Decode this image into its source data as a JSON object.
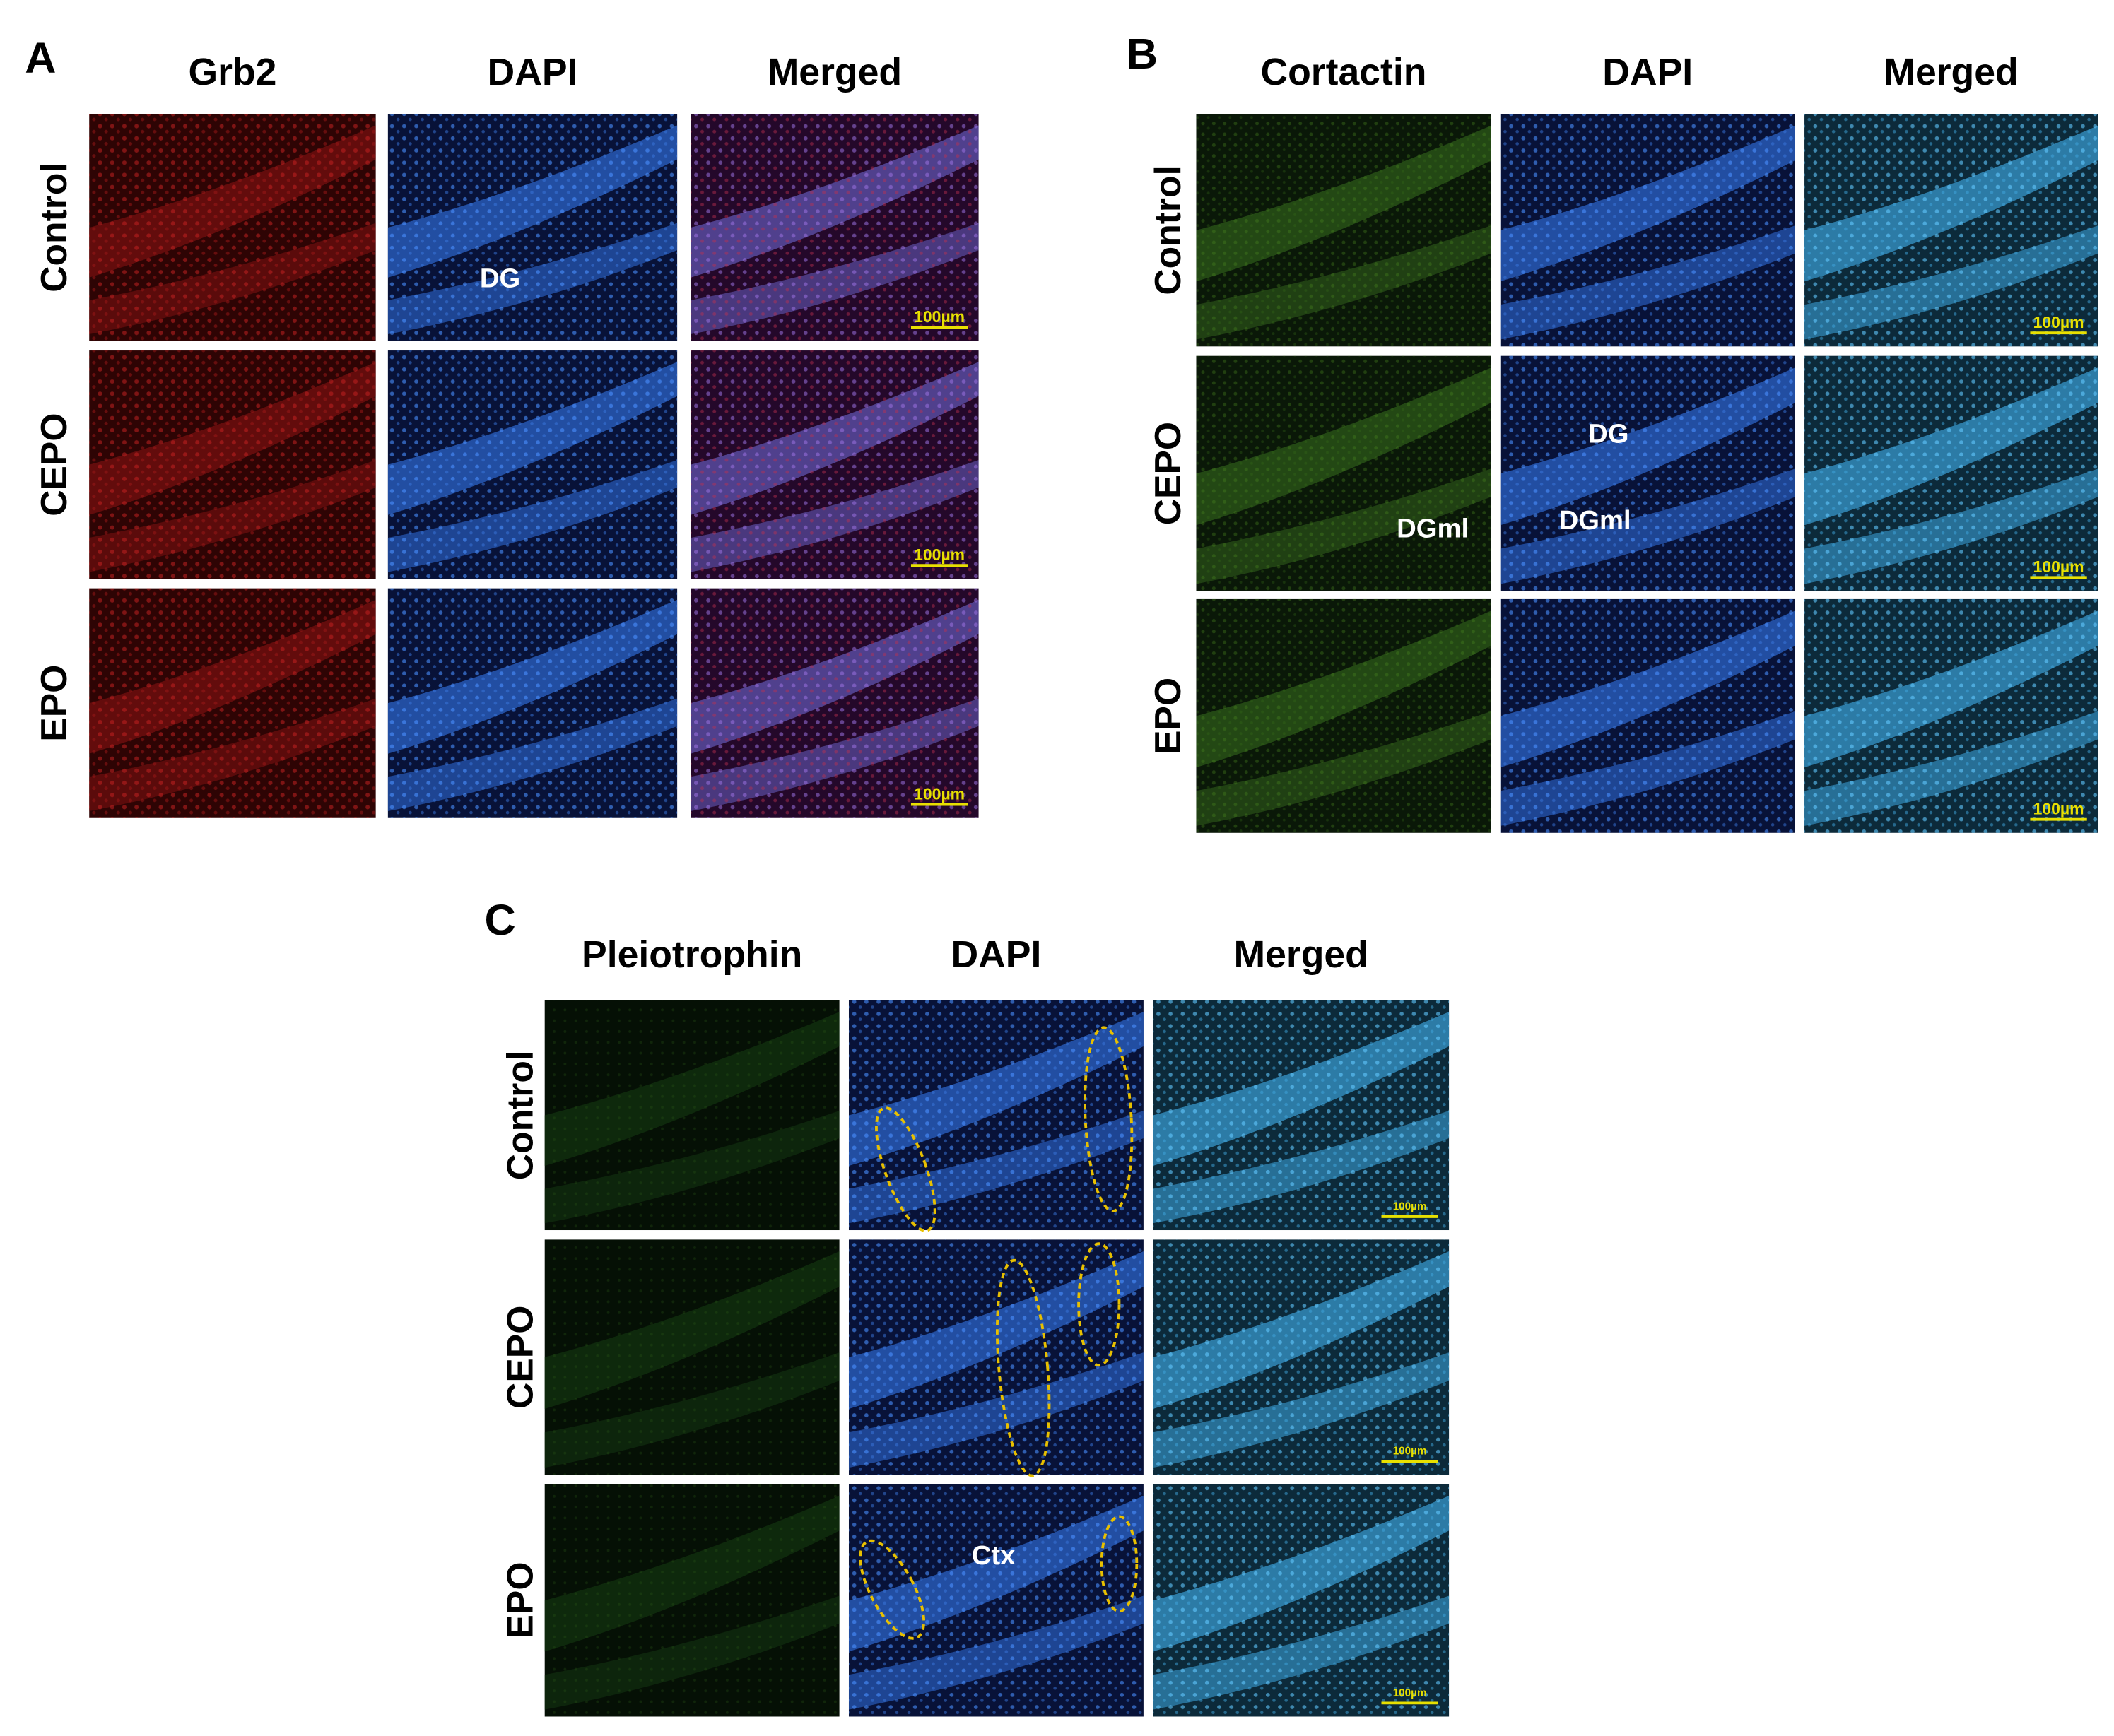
{
  "panels": [
    {
      "letter": "A",
      "columns": [
        "Grb2",
        "DAPI",
        "Merged"
      ],
      "rows": [
        "Control",
        "CEPO",
        "EPO"
      ],
      "scale_bars": [
        "100µm",
        "100µm",
        "100µm"
      ],
      "annotations": [
        "DG"
      ]
    },
    {
      "letter": "B",
      "columns": [
        "Cortactin",
        "DAPI",
        "Merged"
      ],
      "rows": [
        "Control",
        "CEPO",
        "EPO"
      ],
      "scale_bars": [
        "100µm",
        "100µm",
        "100µm"
      ],
      "annotations": [
        "DGml",
        "DG",
        "DGml"
      ]
    },
    {
      "letter": "C",
      "columns": [
        "Pleiotrophin",
        "DAPI",
        "Merged"
      ],
      "rows": [
        "Control",
        "CEPO",
        "EPO"
      ],
      "scale_bars": [
        "100µm",
        "100µm",
        "100µm"
      ],
      "annotations": [
        "Ctx"
      ]
    }
  ]
}
